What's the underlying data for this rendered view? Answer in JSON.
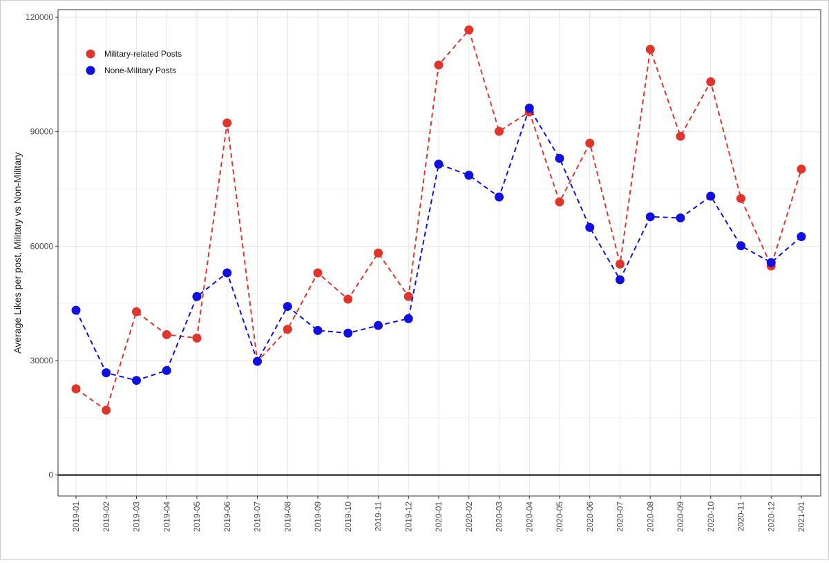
{
  "chart_data": {
    "type": "line",
    "title": "",
    "xlabel": "",
    "ylabel": "Average Likes per post, Military vs Non-Military",
    "ylim": [
      -5500,
      122000
    ],
    "yticks": [
      0,
      30000,
      60000,
      90000,
      120000
    ],
    "ytick_labels": [
      "0",
      "30000",
      "60000",
      "90000",
      "120000"
    ],
    "grid": true,
    "legend_position": "top-left",
    "categories": [
      "2019-01",
      "2019-02",
      "2019-03",
      "2019-04",
      "2019-05",
      "2019-06",
      "2019-07",
      "2019-08",
      "2019-09",
      "2019-10",
      "2019-11",
      "2019-12",
      "2020-01",
      "2020-02",
      "2020-03",
      "2020-04",
      "2020-05",
      "2020-06",
      "2020-07",
      "2020-08",
      "2020-09",
      "2020-10",
      "2020-11",
      "2020-12",
      "2021-01"
    ],
    "series": [
      {
        "name": "Military-related Posts",
        "color": "#e0352b",
        "values": [
          22600,
          17000,
          42800,
          36800,
          35900,
          92300,
          29800,
          38200,
          53000,
          46100,
          58200,
          46800,
          107500,
          116700,
          90100,
          95200,
          71600,
          87000,
          55300,
          111600,
          88800,
          103100,
          72500,
          54800,
          80200
        ]
      },
      {
        "name": "None-Military Posts",
        "color": "#1010e0",
        "values": [
          43200,
          26800,
          24800,
          27400,
          46800,
          53000,
          29800,
          44200,
          37900,
          37200,
          39200,
          41000,
          81500,
          78600,
          72900,
          96200,
          83000,
          64900,
          51200,
          67700,
          67400,
          73100,
          60100,
          55700,
          62500
        ]
      }
    ]
  }
}
